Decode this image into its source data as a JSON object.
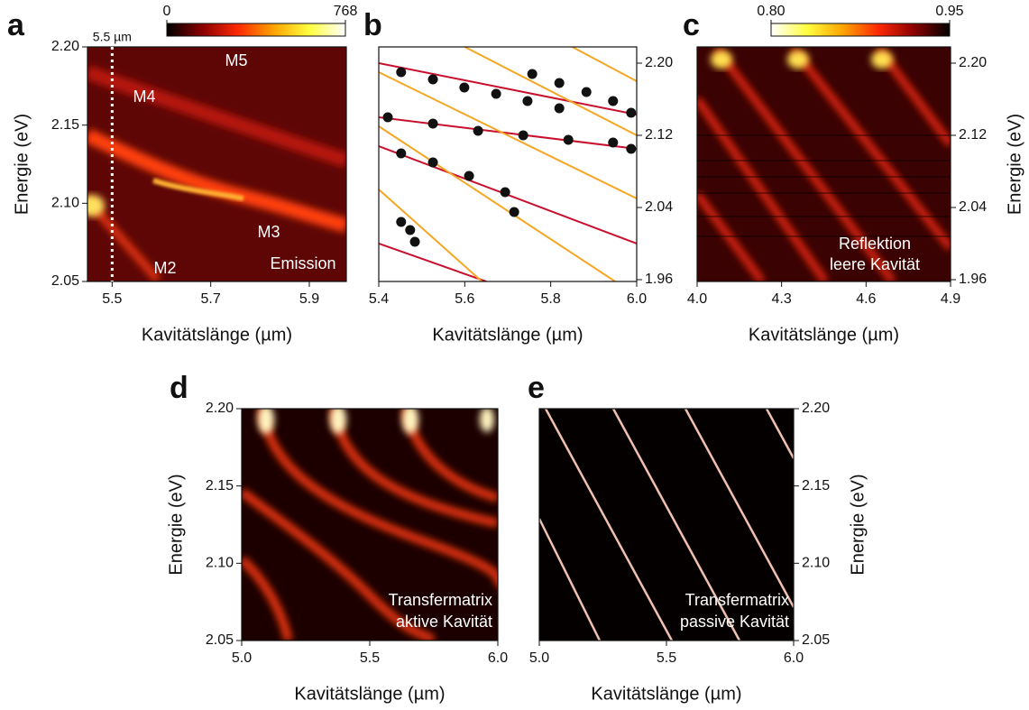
{
  "chart_data": [
    {
      "type": "heatmap",
      "panel": "a",
      "xlabel": "Kavitätslänge (µm)",
      "ylabel": "Energie (eV)",
      "xlim": [
        5.45,
        5.975
      ],
      "ylim": [
        2.05,
        2.2
      ],
      "xticks": [
        5.5,
        5.7,
        5.9
      ],
      "yticks": [
        {
          "value": 2.05,
          "label": "2.05"
        },
        {
          "value": 2.1,
          "label": "2.10"
        },
        2.15,
        {
          "value": 2.2,
          "label": "2.20"
        }
      ],
      "zlim": [
        0,
        768
      ],
      "zticks": [
        0,
        768
      ],
      "colorbar_colors": [
        "#000000",
        "#8b0000",
        "#ff2a00",
        "#ffa500",
        "#ffff40",
        "#ffffff"
      ],
      "vline": {
        "x": 5.5,
        "label": "5.5 µm"
      },
      "annotations": [
        "M5",
        "M4",
        "M3",
        "M2",
        "Emission"
      ]
    },
    {
      "type": "scatter",
      "panel": "b",
      "xlabel": "Kavitätslänge (µm)",
      "xlim": [
        5.4,
        6.0
      ],
      "ylim": [
        1.958,
        2.218
      ],
      "xticks": [
        5.4,
        5.6,
        5.8,
        {
          "value": 6,
          "label": "6.0"
        }
      ],
      "yticks": [
        {
          "value": 2.2,
          "label": "2.20"
        },
        2.12,
        2.04,
        1.96
      ],
      "yaxis": "right",
      "series": [
        {
          "color": "#111111",
          "x": [
            5.452,
            5.526,
            5.599,
            5.673,
            5.746,
            5.82
          ],
          "y": [
            2.19,
            2.182,
            2.173,
            2.166,
            2.158,
            2.15
          ]
        },
        {
          "color": "#111111",
          "x": [
            5.757,
            5.82,
            5.883,
            5.945,
            5.987
          ],
          "y": [
            2.188,
            2.178,
            2.168,
            2.158,
            2.145
          ]
        },
        {
          "color": "#111111",
          "x": [
            5.421,
            5.526,
            5.631,
            5.736,
            5.841,
            5.945,
            5.987
          ],
          "y": [
            2.14,
            2.133,
            2.125,
            2.12,
            2.115,
            2.112,
            2.105
          ]
        },
        {
          "color": "#111111",
          "x": [
            5.452,
            5.526,
            5.61,
            5.694,
            5.715
          ],
          "y": [
            2.1,
            2.09,
            2.075,
            2.057,
            2.035
          ]
        },
        {
          "color": "#111111",
          "x": [
            5.452,
            5.473,
            5.484
          ],
          "y": [
            2.024,
            2.015,
            2.002
          ]
        }
      ],
      "lines": [
        {
          "color": "#c8102e",
          "x": [
            5.4,
            6.0
          ],
          "y": [
            2.2,
            2.143
          ]
        },
        {
          "color": "#c8102e",
          "x": [
            5.4,
            6.0
          ],
          "y": [
            2.14,
            2.105
          ]
        },
        {
          "color": "#c8102e",
          "x": [
            5.4,
            6.0
          ],
          "y": [
            2.108,
            2.0
          ]
        },
        {
          "color": "#c8102e",
          "x": [
            5.4,
            5.65
          ],
          "y": [
            2.0,
            1.958
          ]
        },
        {
          "color": "#f5a623",
          "x": [
            5.4,
            6.0
          ],
          "y": [
            2.19,
            2.05
          ]
        },
        {
          "color": "#f5a623",
          "x": [
            5.4,
            5.95
          ],
          "y": [
            2.13,
            1.958
          ]
        },
        {
          "color": "#f5a623",
          "x": [
            5.4,
            5.64
          ],
          "y": [
            2.06,
            1.958
          ]
        },
        {
          "color": "#f5a623",
          "x": [
            5.6,
            6.0
          ],
          "y": [
            2.218,
            2.12
          ]
        },
        {
          "color": "#f5a623",
          "x": [
            5.85,
            6.0
          ],
          "y": [
            2.218,
            2.18
          ]
        }
      ]
    },
    {
      "type": "heatmap",
      "panel": "c",
      "xlabel": "Kavitätslänge (µm)",
      "ylabel": "Energie (eV)",
      "xlim": [
        4.0,
        4.9
      ],
      "ylim": [
        1.958,
        2.218
      ],
      "xticks": [
        {
          "value": 4,
          "label": "4.0"
        },
        4.3,
        4.6,
        4.9
      ],
      "yticks": [
        {
          "value": 2.2,
          "label": "2.20"
        },
        2.12,
        2.04,
        1.96
      ],
      "yaxis": "right",
      "zlim": [
        0.8,
        0.95
      ],
      "zticks": [
        {
          "value": 0.8,
          "label": "0.80"
        },
        0.95
      ],
      "colorbar_colors": [
        "#ffffff",
        "#ffff40",
        "#ffa500",
        "#ff2a00",
        "#8b0000",
        "#000000"
      ],
      "annotations": [
        "Reflektion",
        "leere Kavität"
      ]
    },
    {
      "type": "heatmap",
      "panel": "d",
      "xlabel": "Kavitätslänge (µm)",
      "ylabel": "Energie (eV)",
      "xlim": [
        5.0,
        6.0
      ],
      "ylim": [
        2.05,
        2.2
      ],
      "xticks": [
        {
          "value": 5,
          "label": "5.0"
        },
        5.5,
        {
          "value": 6,
          "label": "6.0"
        }
      ],
      "yticks": [
        {
          "value": 2.05,
          "label": "2.05"
        },
        {
          "value": 2.1,
          "label": "2.10"
        },
        2.15,
        {
          "value": 2.2,
          "label": "2.20"
        }
      ],
      "annotations": [
        "Transfermatrix",
        "aktive Kavität"
      ]
    },
    {
      "type": "heatmap",
      "panel": "e",
      "xlabel": "Kavitätslänge (µm)",
      "ylabel": "Energie (eV)",
      "xlim": [
        5.0,
        6.0
      ],
      "ylim": [
        2.05,
        2.2
      ],
      "xticks": [
        {
          "value": 5,
          "label": "5.0"
        },
        5.5,
        {
          "value": 6,
          "label": "6.0"
        }
      ],
      "yticks": [
        {
          "value": 2.05,
          "label": "2.05"
        },
        {
          "value": 2.1,
          "label": "2.10"
        },
        2.15,
        {
          "value": 2.2,
          "label": "2.20"
        }
      ],
      "yaxis": "right",
      "annotations": [
        "Transfermatrix",
        "passive Kavität"
      ]
    }
  ]
}
